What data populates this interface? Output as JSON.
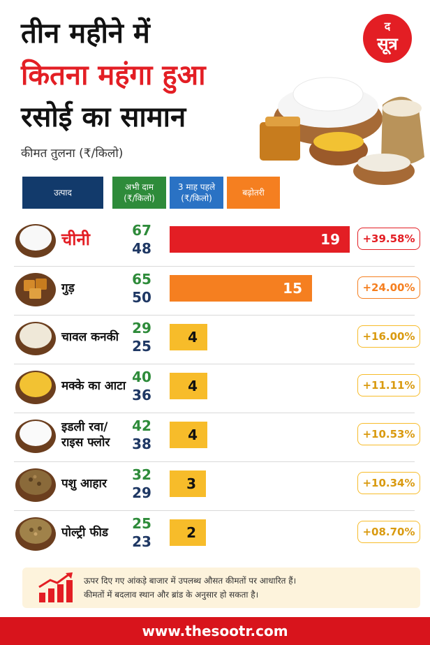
{
  "title": {
    "line1": "तीन महीने में",
    "line2": "कितना महंगा हुआ",
    "line3": "रसोई का सामान"
  },
  "subtitle": "कीमत तुलना (₹/किलो)",
  "logo": {
    "small": "द",
    "big": "सूत्र"
  },
  "headers": {
    "product": "उत्पाद",
    "current_l1": "अभी दाम",
    "current_l2": "(₹/किलो)",
    "previous_l1": "3 माह पहले",
    "previous_l2": "(₹/किलो)",
    "increase": "बढ़ोतरी"
  },
  "colors": {
    "navy": "#123a6b",
    "green": "#2e8b3a",
    "blue": "#2a72c4",
    "orange": "#f57f20",
    "red": "#e31e24",
    "bar_red": "#e31e24",
    "bar_orange": "#f57f20",
    "bar_yellow": "#f7bc2a"
  },
  "chart_data": {
    "type": "bar",
    "categories": [
      "चीनी",
      "गुड़",
      "चावल कनकी",
      "मक्के का आटा",
      "इडली रवा/ राइस फ्लोर",
      "पशु आहार",
      "पोल्ट्री फीड"
    ],
    "series": [
      {
        "name": "अभी दाम",
        "values": [
          67,
          65,
          29,
          40,
          42,
          32,
          25
        ]
      },
      {
        "name": "3 माह पहले",
        "values": [
          48,
          50,
          25,
          36,
          38,
          29,
          23
        ]
      },
      {
        "name": "बढ़ोतरी",
        "values": [
          19,
          15,
          4,
          4,
          4,
          3,
          2
        ]
      }
    ],
    "percent_labels": [
      "+39.58%",
      "+24.00%",
      "+16.00%",
      "+11.11%",
      "+10.53%",
      "+10.34%",
      "+08.70%"
    ],
    "bar_colors": [
      "#e31e24",
      "#f57f20",
      "#f7bc2a",
      "#f7bc2a",
      "#f7bc2a",
      "#f7bc2a",
      "#f7bc2a"
    ],
    "grid": false
  },
  "rows": [
    {
      "name": "चीनी",
      "now": "67",
      "old": "48",
      "diff": "19",
      "pct": "+39.58%",
      "icon": "sugar-bowl-icon",
      "highlight": true
    },
    {
      "name": "गुड़",
      "now": "65",
      "old": "50",
      "diff": "15",
      "pct": "+24.00%",
      "icon": "jaggery-icon",
      "highlight": false
    },
    {
      "name": "चावल कनकी",
      "now": "29",
      "old": "25",
      "diff": "4",
      "pct": "+16.00%",
      "icon": "rice-bowl-icon",
      "highlight": false
    },
    {
      "name": "मक्के का आटा",
      "now": "40",
      "old": "36",
      "diff": "4",
      "pct": "+11.11%",
      "icon": "maize-flour-icon",
      "highlight": false
    },
    {
      "name_l1": "इडली रवा/",
      "name_l2": "राइस फ्लोर",
      "now": "42",
      "old": "38",
      "diff": "4",
      "pct": "+10.53%",
      "icon": "rice-flour-icon",
      "highlight": false
    },
    {
      "name": "पशु आहार",
      "now": "32",
      "old": "29",
      "diff": "3",
      "pct": "+10.34%",
      "icon": "cattle-feed-icon",
      "highlight": false
    },
    {
      "name": "पोल्ट्री फीड",
      "now": "25",
      "old": "23",
      "diff": "2",
      "pct": "+08.70%",
      "icon": "poultry-feed-icon",
      "highlight": false
    }
  ],
  "note": {
    "line1": "ऊपर दिए गए आंकड़े बाजार में उपलब्ध औसत कीमतों पर आधारित हैं।",
    "line2": "कीमतों में बदलाव स्थान और ब्रांड के अनुसार हो सकता है।"
  },
  "footer": "www.thesootr.com"
}
